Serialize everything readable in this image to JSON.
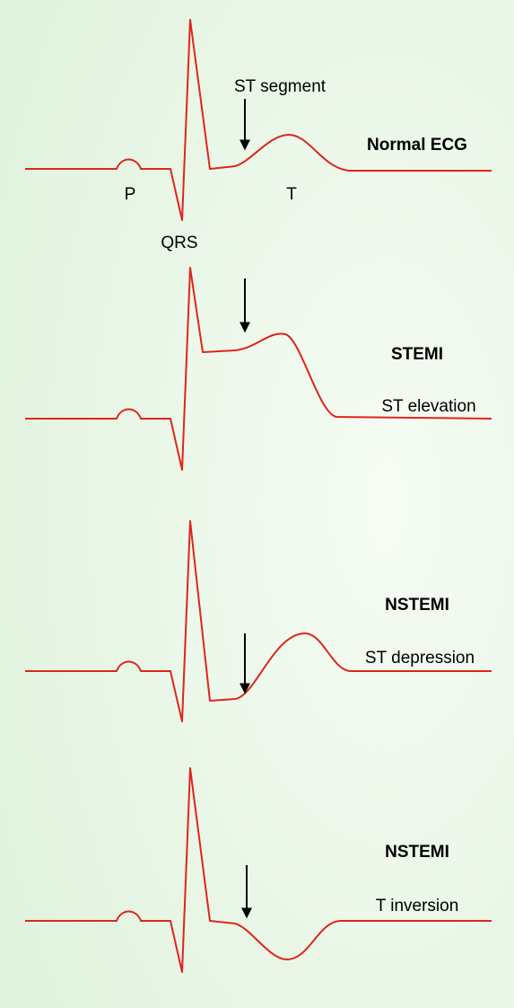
{
  "panels": [
    {
      "title": "Normal ECG",
      "labels": {
        "st": "ST segment",
        "p": "P",
        "qrs": "QRS",
        "t": "T"
      }
    },
    {
      "title": "STEMI",
      "subtitle": "ST elevation"
    },
    {
      "title": "NSTEMI",
      "subtitle": "ST depression"
    },
    {
      "title": "NSTEMI",
      "subtitle": "T inversion"
    }
  ]
}
